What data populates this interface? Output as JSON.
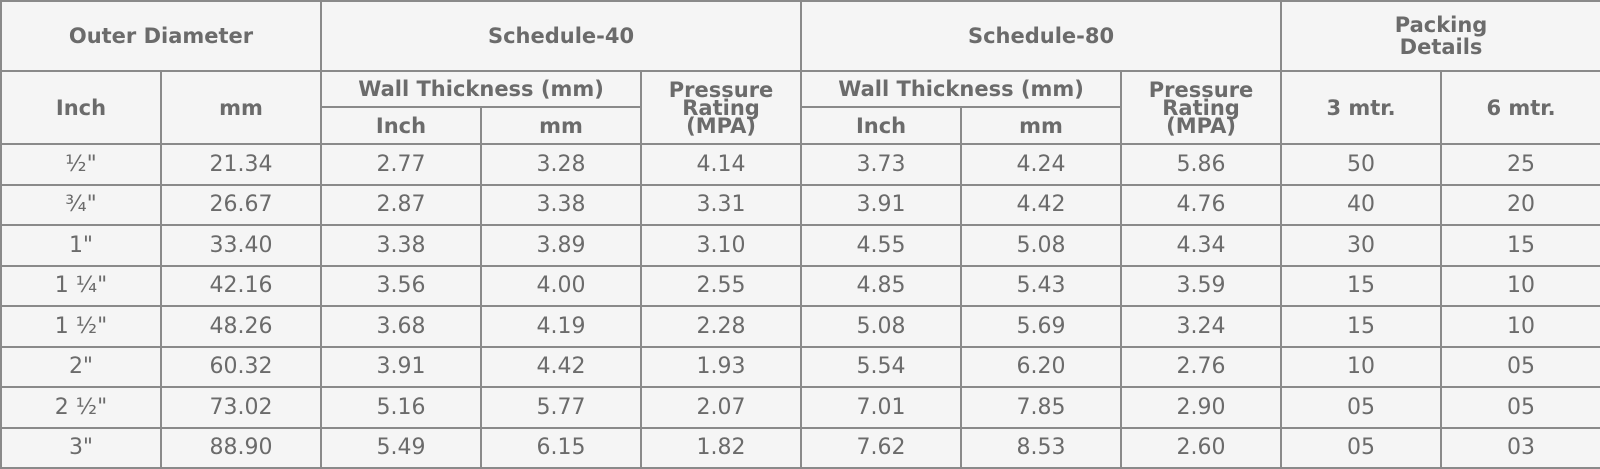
{
  "headers": {
    "outer_diameter": "Outer Diameter",
    "schedule40": "Schedule-40",
    "schedule80": "Schedule-80",
    "packing_line1": "Packing",
    "packing_line2": "Details",
    "inch": "Inch",
    "mm": "mm",
    "wall_thickness": "Wall Thickness (mm)",
    "pressure_line1": "Pressure",
    "pressure_line2": "Rating",
    "pressure_line3": "(MPA)",
    "three_mtr": "3 mtr.",
    "six_mtr": "6 mtr."
  },
  "rows": [
    {
      "od_inch": "½\"",
      "od_mm": "21.34",
      "s40_inch": "2.77",
      "s40_mm": "3.28",
      "s40_mpa": "4.14",
      "s80_inch": "3.73",
      "s80_mm": "4.24",
      "s80_mpa": "5.86",
      "pack3": "50",
      "pack6": "25"
    },
    {
      "od_inch": "¾\"",
      "od_mm": "26.67",
      "s40_inch": "2.87",
      "s40_mm": "3.38",
      "s40_mpa": "3.31",
      "s80_inch": "3.91",
      "s80_mm": "4.42",
      "s80_mpa": "4.76",
      "pack3": "40",
      "pack6": "20"
    },
    {
      "od_inch": "1\"",
      "od_mm": "33.40",
      "s40_inch": "3.38",
      "s40_mm": "3.89",
      "s40_mpa": "3.10",
      "s80_inch": "4.55",
      "s80_mm": "5.08",
      "s80_mpa": "4.34",
      "pack3": "30",
      "pack6": "15"
    },
    {
      "od_inch": "1 ¼\"",
      "od_mm": "42.16",
      "s40_inch": "3.56",
      "s40_mm": "4.00",
      "s40_mpa": "2.55",
      "s80_inch": "4.85",
      "s80_mm": "5.43",
      "s80_mpa": "3.59",
      "pack3": "15",
      "pack6": "10"
    },
    {
      "od_inch": "1 ½\"",
      "od_mm": "48.26",
      "s40_inch": "3.68",
      "s40_mm": "4.19",
      "s40_mpa": "2.28",
      "s80_inch": "5.08",
      "s80_mm": "5.69",
      "s80_mpa": "3.24",
      "pack3": "15",
      "pack6": "10"
    },
    {
      "od_inch": "2\"",
      "od_mm": "60.32",
      "s40_inch": "3.91",
      "s40_mm": "4.42",
      "s40_mpa": "1.93",
      "s80_inch": "5.54",
      "s80_mm": "6.20",
      "s80_mpa": "2.76",
      "pack3": "10",
      "pack6": "05"
    },
    {
      "od_inch": "2 ½\"",
      "od_mm": "73.02",
      "s40_inch": "5.16",
      "s40_mm": "5.77",
      "s40_mpa": "2.07",
      "s80_inch": "7.01",
      "s80_mm": "7.85",
      "s80_mpa": "2.90",
      "pack3": "05",
      "pack6": "05"
    },
    {
      "od_inch": "3\"",
      "od_mm": "88.90",
      "s40_inch": "5.49",
      "s40_mm": "6.15",
      "s40_mpa": "1.82",
      "s80_inch": "7.62",
      "s80_mm": "8.53",
      "s80_mpa": "2.60",
      "pack3": "05",
      "pack6": "03"
    }
  ]
}
